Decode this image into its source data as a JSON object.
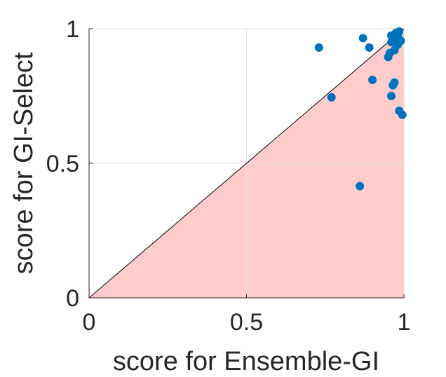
{
  "chart_data": {
    "type": "scatter",
    "xlabel": "score for Ensemble-GI",
    "ylabel": "score for GI-Select",
    "xlim": [
      0,
      1
    ],
    "ylim": [
      0,
      1
    ],
    "x_ticks": [
      "0",
      "0.5",
      "1"
    ],
    "y_ticks": [
      "0",
      "0.5",
      "1"
    ],
    "grid": true,
    "diagonal_reference": true,
    "region_below_diagonal_shaded": true,
    "colors": {
      "points": "#0072BD",
      "shade": "#FFCCCC",
      "grid": "#E3E3E3",
      "axis": "#262626"
    },
    "points": [
      {
        "x": 0.73,
        "y": 0.93
      },
      {
        "x": 0.77,
        "y": 0.745
      },
      {
        "x": 0.86,
        "y": 0.415
      },
      {
        "x": 0.87,
        "y": 0.965
      },
      {
        "x": 0.89,
        "y": 0.93
      },
      {
        "x": 0.9,
        "y": 0.81
      },
      {
        "x": 0.95,
        "y": 0.895
      },
      {
        "x": 0.955,
        "y": 0.91
      },
      {
        "x": 0.96,
        "y": 0.75
      },
      {
        "x": 0.96,
        "y": 0.95
      },
      {
        "x": 0.96,
        "y": 0.975
      },
      {
        "x": 0.965,
        "y": 0.79
      },
      {
        "x": 0.97,
        "y": 0.8
      },
      {
        "x": 0.97,
        "y": 0.92
      },
      {
        "x": 0.975,
        "y": 0.96
      },
      {
        "x": 0.98,
        "y": 0.975
      },
      {
        "x": 0.98,
        "y": 0.94
      },
      {
        "x": 0.985,
        "y": 0.695
      },
      {
        "x": 0.99,
        "y": 0.955
      },
      {
        "x": 0.995,
        "y": 0.68
      },
      {
        "x": 0.975,
        "y": 0.985
      },
      {
        "x": 0.985,
        "y": 0.99
      }
    ]
  }
}
